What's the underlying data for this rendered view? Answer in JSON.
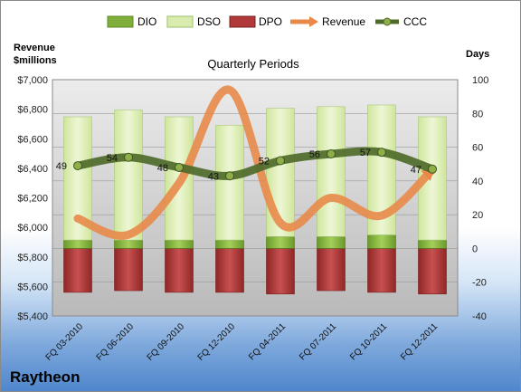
{
  "chart_data": {
    "type": "bar",
    "company": "Raytheon",
    "subtitle": "Quarterly Periods",
    "left_axis_label": [
      "Revenue",
      "$millions"
    ],
    "right_axis_label": "Days",
    "categories": [
      "FQ 03-2010",
      "FQ 06-2010",
      "FQ 09-2010",
      "FQ 12-2010",
      "FQ 04-2011",
      "FQ 07-2011",
      "FQ 10-2011",
      "FQ 12-2011"
    ],
    "left_ylim": [
      5400,
      7000
    ],
    "left_ticks": [
      "$5,400",
      "$5,600",
      "$5,800",
      "$6,000",
      "$6,200",
      "$6,400",
      "$6,600",
      "$6,800",
      "$7,000"
    ],
    "right_ylim": [
      -40,
      100
    ],
    "right_ticks": [
      "-40",
      "-20",
      "0",
      "20",
      "40",
      "60",
      "80",
      "100"
    ],
    "grid": true,
    "legend_position": "top",
    "series": [
      {
        "name": "DIO",
        "axis": "right",
        "kind": "stacked-bar",
        "color": "#7fae3a",
        "values": [
          5,
          5,
          5,
          5,
          7,
          7,
          8,
          5
        ]
      },
      {
        "name": "DSO",
        "axis": "right",
        "kind": "stacked-bar",
        "color": "#d9ecae",
        "values": [
          73,
          77,
          73,
          68,
          76,
          77,
          77,
          73
        ]
      },
      {
        "name": "DPO",
        "axis": "right",
        "kind": "bar-negative",
        "color": "#b03a3a",
        "values": [
          -26,
          -25,
          -26,
          -26,
          -27,
          -25,
          -26,
          -27
        ]
      },
      {
        "name": "Revenue",
        "axis": "left",
        "kind": "line",
        "color": "#e8894a",
        "values": [
          6060,
          5950,
          6300,
          6930,
          6030,
          6200,
          6080,
          6390
        ]
      },
      {
        "name": "CCC",
        "axis": "right",
        "kind": "line",
        "color": "#4f6a2a",
        "values": [
          49,
          54,
          48,
          43,
          52,
          56,
          57,
          47
        ]
      }
    ],
    "ccc_labels": [
      "49",
      "54",
      "48",
      "43",
      "52",
      "56",
      "57",
      "47"
    ]
  }
}
